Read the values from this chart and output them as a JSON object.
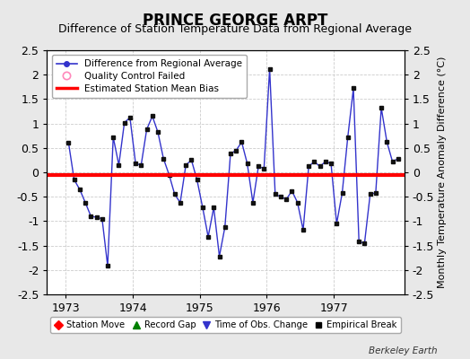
{
  "title": "PRINCE GEORGE ARPT",
  "subtitle": "Difference of Station Temperature Data from Regional Average",
  "ylabel": "Monthly Temperature Anomaly Difference (°C)",
  "bias_value": -0.05,
  "xlim_left": 1972.72,
  "xlim_right": 1978.05,
  "ylim": [
    -2.5,
    2.5
  ],
  "yticks": [
    -2.5,
    -2.0,
    -1.5,
    -1.0,
    -0.5,
    0.0,
    0.5,
    1.0,
    1.5,
    2.0,
    2.5
  ],
  "xticks": [
    1973,
    1974,
    1975,
    1976,
    1977
  ],
  "bg_color": "#e8e8e8",
  "plot_bg_color": "#ffffff",
  "line_color": "#3333cc",
  "bias_color": "#ff0000",
  "watermark": "Berkeley Earth",
  "data_x": [
    1973.042,
    1973.125,
    1973.208,
    1973.292,
    1973.375,
    1973.458,
    1973.542,
    1973.625,
    1973.708,
    1973.792,
    1973.875,
    1973.958,
    1974.042,
    1974.125,
    1974.208,
    1974.292,
    1974.375,
    1974.458,
    1974.542,
    1974.625,
    1974.708,
    1974.792,
    1974.875,
    1974.958,
    1975.042,
    1975.125,
    1975.208,
    1975.292,
    1975.375,
    1975.458,
    1975.542,
    1975.625,
    1975.708,
    1975.792,
    1975.875,
    1975.958,
    1976.042,
    1976.125,
    1976.208,
    1976.292,
    1976.375,
    1976.458,
    1976.542,
    1976.625,
    1976.708,
    1976.792,
    1976.875,
    1976.958,
    1977.042,
    1977.125,
    1977.208,
    1977.292,
    1977.375,
    1977.458,
    1977.542,
    1977.625,
    1977.708,
    1977.792,
    1977.875,
    1977.958
  ],
  "data_y": [
    0.6,
    -0.15,
    -0.35,
    -0.62,
    -0.9,
    -0.92,
    -0.95,
    -1.92,
    0.72,
    0.15,
    1.02,
    1.12,
    0.18,
    0.15,
    0.88,
    1.15,
    0.82,
    0.28,
    -0.05,
    -0.45,
    -0.62,
    0.15,
    0.25,
    -0.15,
    -0.72,
    -1.32,
    -0.72,
    -1.72,
    -1.12,
    0.38,
    0.45,
    0.62,
    0.18,
    -0.62,
    0.12,
    0.08,
    2.12,
    -0.45,
    -0.5,
    -0.55,
    -0.38,
    -0.62,
    -1.18,
    0.12,
    0.22,
    0.12,
    0.22,
    0.18,
    -1.05,
    -0.42,
    0.72,
    1.72,
    -1.42,
    -1.45,
    -0.45,
    -0.42,
    1.32,
    0.62,
    0.22,
    0.28
  ],
  "title_fontsize": 12,
  "subtitle_fontsize": 9,
  "axis_fontsize": 9,
  "ylabel_fontsize": 8
}
